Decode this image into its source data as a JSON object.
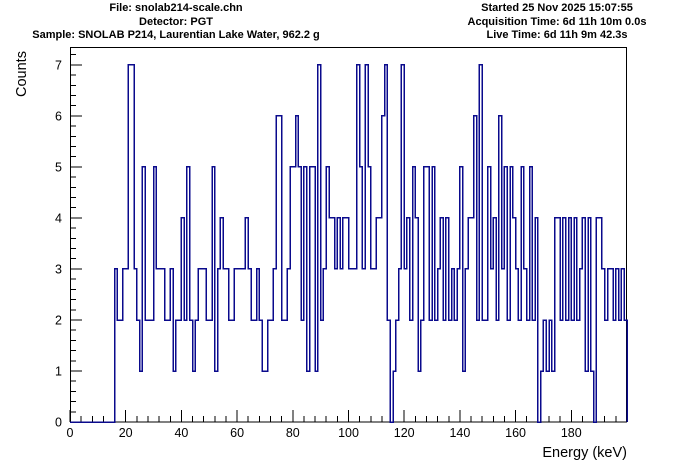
{
  "header": {
    "left": [
      "File: snolab214-scale.chn",
      "Detector: PGT",
      "Sample: SNOLAB P214, Laurentian Lake Water, 962.2 g"
    ],
    "right": [
      "Started 25 Nov 2025 15:07:55",
      "Acquisition Time: 6d 11h 10m 0.0s",
      "Live Time: 6d 11h 9m 42.3s"
    ]
  },
  "chart_data": {
    "type": "bar",
    "style": "step-histogram",
    "title": "",
    "xlabel": "Energy (keV)",
    "ylabel": "Counts",
    "xlim": [
      0,
      200
    ],
    "ylim": [
      0,
      7.35
    ],
    "x_ticks": [
      0,
      20,
      40,
      60,
      80,
      100,
      120,
      140,
      160,
      180
    ],
    "y_ticks": [
      0,
      1,
      2,
      3,
      4,
      5,
      6,
      7
    ],
    "x_minor_step": 4,
    "y_minor_step": 0.2,
    "bin_width_kev": 1,
    "bin_start_kev": 0,
    "grid": false,
    "legend": "none",
    "line_color": "#0a0a8c",
    "frame_color": "#000000",
    "background_color": "#ffffff",
    "values": [
      0,
      0,
      0,
      0,
      0,
      0,
      0,
      0,
      0,
      0,
      0,
      0,
      0,
      0,
      0,
      0,
      3,
      2,
      2,
      3,
      3,
      7,
      7,
      3,
      2,
      1,
      5,
      2,
      2,
      2,
      5,
      3,
      3,
      3,
      2,
      2,
      3,
      1,
      2,
      2,
      4,
      2,
      5,
      2,
      1,
      2,
      3,
      3,
      3,
      2,
      2,
      5,
      1,
      3,
      4,
      3,
      3,
      2,
      2,
      3,
      3,
      3,
      3,
      4,
      3,
      2,
      2,
      3,
      2,
      1,
      1,
      2,
      2,
      3,
      6,
      6,
      2,
      2,
      3,
      5,
      5,
      6,
      5,
      2,
      5,
      1,
      5,
      5,
      1,
      7,
      2,
      3,
      5,
      4,
      4,
      3,
      4,
      3,
      4,
      4,
      3,
      3,
      3,
      7,
      5,
      3,
      7,
      5,
      3,
      3,
      4,
      4,
      6,
      7,
      2,
      0,
      1,
      2,
      3,
      7,
      3,
      4,
      2,
      5,
      4,
      1,
      2,
      5,
      5,
      2,
      5,
      2,
      3,
      4,
      2,
      4,
      2,
      3,
      2,
      3,
      5,
      1,
      3,
      4,
      4,
      6,
      2,
      7,
      2,
      2,
      5,
      3,
      4,
      2,
      6,
      3,
      5,
      2,
      5,
      4,
      3,
      2,
      5,
      3,
      2,
      5,
      2,
      4,
      0,
      1,
      2,
      1,
      2,
      1,
      4,
      4,
      2,
      4,
      2,
      4,
      2,
      4,
      2,
      3,
      4,
      1,
      4,
      1,
      0,
      4,
      4,
      3,
      2,
      3,
      3,
      2,
      3,
      2,
      3,
      2
    ]
  }
}
